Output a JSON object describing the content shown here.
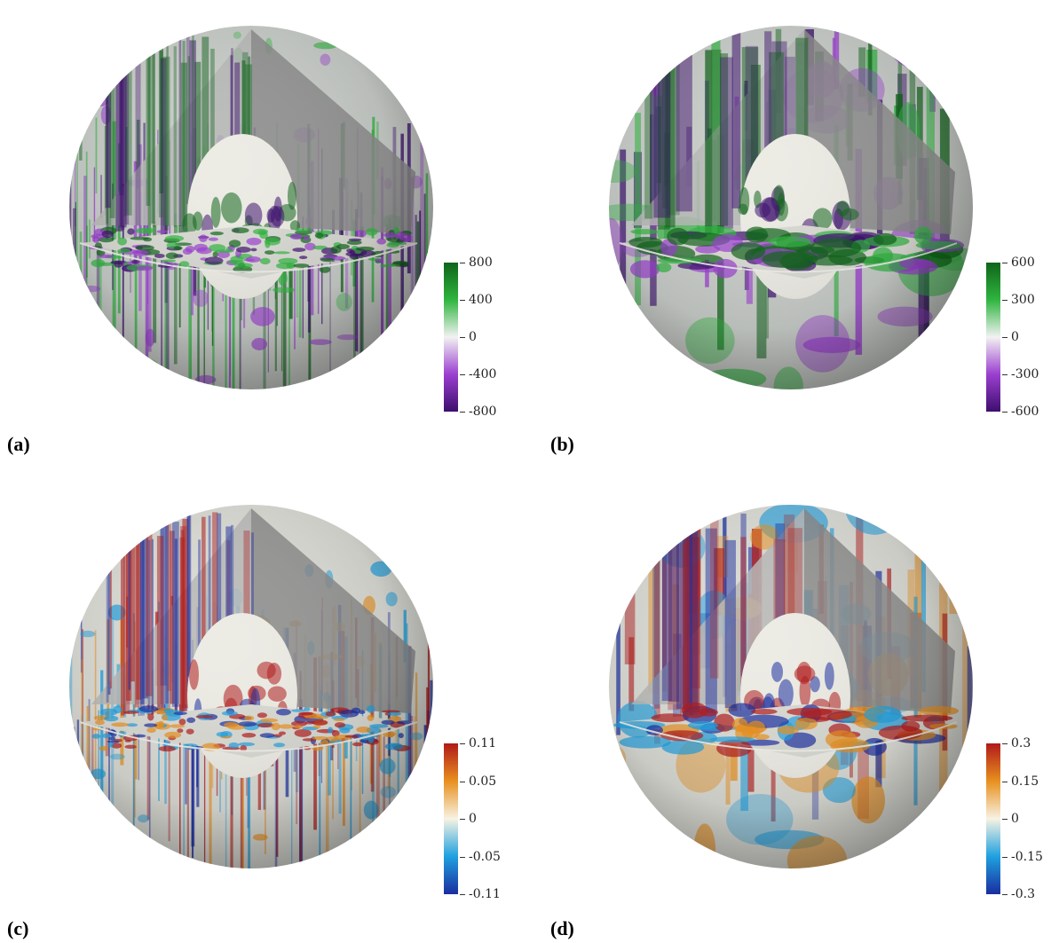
{
  "panels": [
    {
      "label": "(a)",
      "colormap": "purple-green",
      "colorbar": {
        "ticks": [
          "800",
          "400",
          "0",
          "-400",
          "-800"
        ],
        "colors": [
          "#10641a",
          "#2fb53f",
          "#f2f2f2",
          "#9b3fd0",
          "#3d0f6e"
        ]
      }
    },
    {
      "label": "(b)",
      "colormap": "purple-green",
      "colorbar": {
        "ticks": [
          "600",
          "300",
          "0",
          "-300",
          "-600"
        ],
        "colors": [
          "#10641a",
          "#2fb53f",
          "#f2f2f2",
          "#9b3fd0",
          "#3d0f6e"
        ]
      }
    },
    {
      "label": "(c)",
      "colormap": "blue-red",
      "colorbar": {
        "ticks": [
          "0.11",
          "0.05",
          "0",
          "-0.05",
          "-0.11"
        ],
        "colors": [
          "#b01a1a",
          "#e8901e",
          "#f7f3e3",
          "#1fa0e0",
          "#1a2da0"
        ]
      }
    },
    {
      "label": "(d)",
      "colormap": "blue-red",
      "colorbar": {
        "ticks": [
          "0.3",
          "0.15",
          "0",
          "-0.15",
          "-0.3"
        ],
        "colors": [
          "#b01a1a",
          "#e8901e",
          "#f7f3e3",
          "#1fa0e0",
          "#1a2da0"
        ]
      }
    }
  ]
}
